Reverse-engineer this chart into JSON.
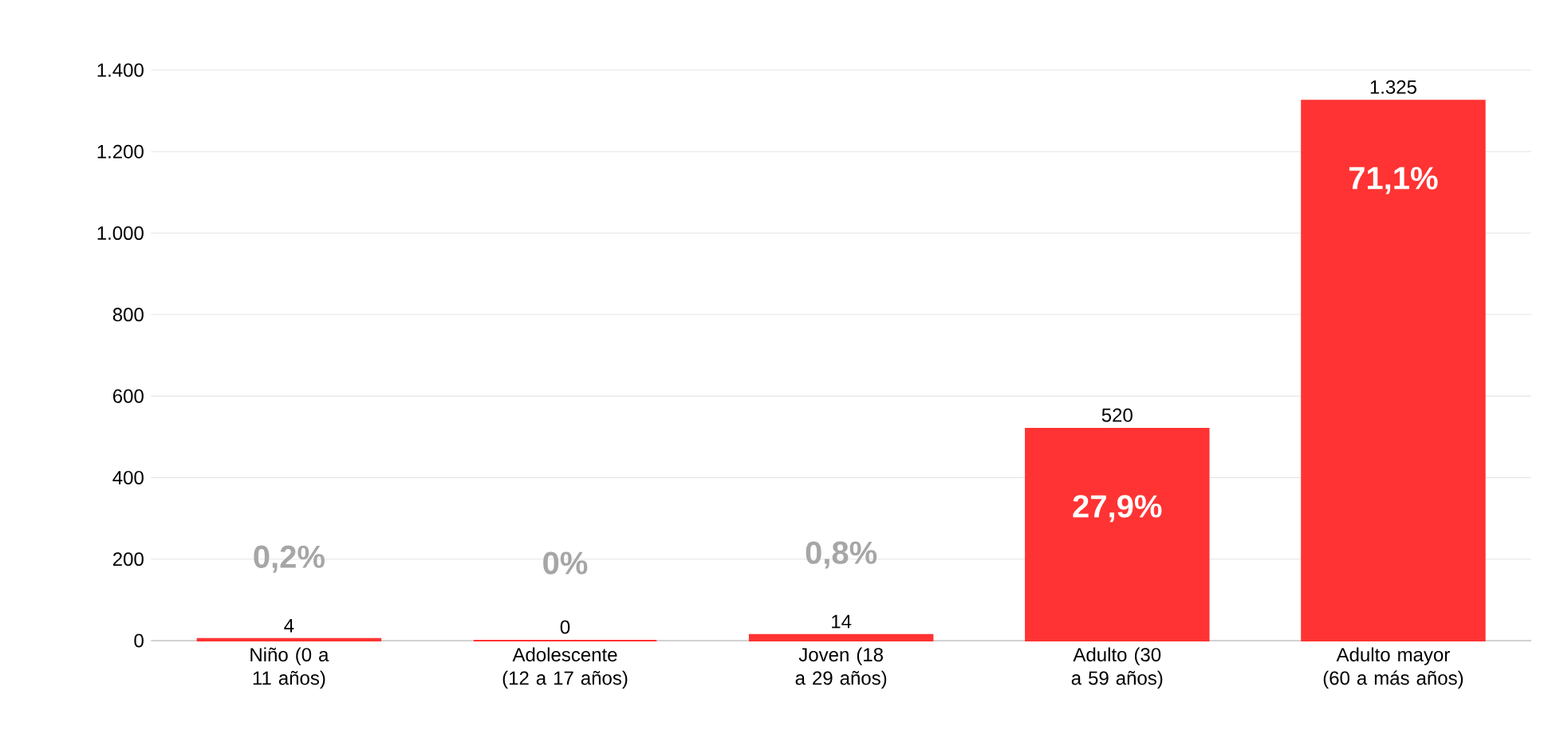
{
  "chart_data": {
    "type": "bar",
    "categories": [
      "Niño (0 a 11 años)",
      "Adolescente (12 a 17 años)",
      "Joven (18 a 29 años)",
      "Adulto (30 a 59 años)",
      "Adulto mayor (60 a más años)"
    ],
    "values": [
      4,
      0,
      14,
      520,
      1325
    ],
    "value_labels": [
      "4",
      "0",
      "14",
      "520",
      "1.325"
    ],
    "color": "#ff3333",
    "ylim": [
      0,
      1400
    ],
    "yticks": [
      0,
      200,
      400,
      600,
      800,
      {
        "value": 1000,
        "label": "1.000"
      },
      {
        "value": 1200,
        "label": "1.200"
      },
      {
        "value": 1400,
        "label": "1.400"
      }
    ],
    "grid": "y",
    "annotations": [
      "0,2%",
      "0%",
      "0,8%",
      "27,9%",
      "71,1%"
    ]
  }
}
